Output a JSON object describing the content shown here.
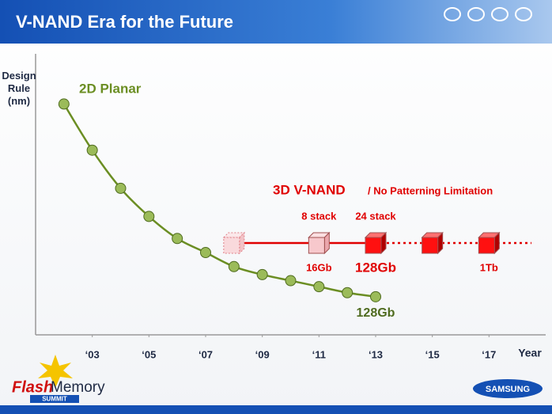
{
  "header": {
    "title": "V-NAND Era for the Future"
  },
  "chart_data": {
    "type": "line",
    "y_label": "Design Rule (nm)",
    "x_label": "Year",
    "xlim": [
      2001,
      2019
    ],
    "ylim": [
      0,
      140
    ],
    "xticks": [
      {
        "value": 2003,
        "label": "‘03"
      },
      {
        "value": 2005,
        "label": "‘05"
      },
      {
        "value": 2007,
        "label": "‘07"
      },
      {
        "value": 2009,
        "label": "‘09"
      },
      {
        "value": 2011,
        "label": "‘11"
      },
      {
        "value": 2013,
        "label": "‘13"
      },
      {
        "value": 2015,
        "label": "‘15"
      },
      {
        "value": 2017,
        "label": "‘17"
      }
    ],
    "series": [
      {
        "name": "2D Planar",
        "color": "#6b8e23",
        "x": [
          2002,
          2003,
          2004,
          2005,
          2006,
          2007,
          2008,
          2009,
          2010,
          2011,
          2012,
          2013
        ],
        "values": [
          115,
          92,
          73,
          59,
          48,
          41,
          34,
          30,
          27,
          24,
          21,
          19
        ],
        "end_label": "128Gb"
      }
    ],
    "v_nand": {
      "title": "3D V-NAND",
      "subtitle": "/ No Patterning Limitation",
      "color": "#e00000",
      "x": [
        2008,
        2011,
        2013,
        2015,
        2017
      ],
      "stack_labels": [
        null,
        "8 stack",
        "24 stack",
        null,
        null
      ],
      "capacity_labels": [
        null,
        "16Gb",
        "128Gb",
        null,
        "1Tb"
      ]
    }
  },
  "footer": {
    "logo_left": [
      "Flash",
      "Memory",
      "SUMMIT"
    ],
    "logo_right": "SAMSUNG"
  }
}
